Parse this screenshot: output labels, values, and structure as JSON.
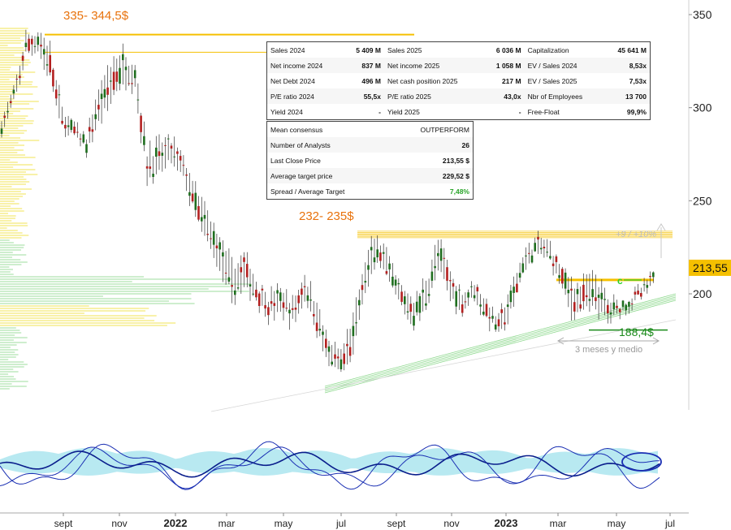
{
  "chart_data": {
    "type": "candlestick",
    "y_axis": {
      "ticks": [
        350,
        300,
        250,
        200
      ],
      "range": [
        155,
        358
      ],
      "side": "right"
    },
    "x_axis": {
      "labels": [
        "sept",
        "nov",
        "2022",
        "mar",
        "may",
        "jul",
        "sept",
        "nov",
        "2023",
        "mar",
        "may",
        "jul"
      ],
      "bold_labels": [
        "2022",
        "2023"
      ]
    },
    "price_series": [
      [
        285,
        296
      ],
      [
        300,
        310
      ],
      [
        325,
        341
      ],
      [
        330,
        343
      ],
      [
        310,
        335
      ],
      [
        285,
        302
      ],
      [
        282,
        292
      ],
      [
        275,
        286
      ],
      [
        290,
        312
      ],
      [
        300,
        328
      ],
      [
        310,
        333
      ],
      [
        310,
        326
      ],
      [
        255,
        282
      ],
      [
        262,
        284
      ],
      [
        268,
        286
      ],
      [
        260,
        275
      ],
      [
        235,
        260
      ],
      [
        225,
        245
      ],
      [
        210,
        234
      ],
      [
        192,
        218
      ],
      [
        200,
        225
      ],
      [
        194,
        210
      ],
      [
        185,
        202
      ],
      [
        188,
        205
      ],
      [
        181,
        198
      ],
      [
        195,
        213
      ],
      [
        175,
        200
      ],
      [
        160,
        175
      ],
      [
        155,
        170
      ],
      [
        165,
        190
      ],
      [
        195,
        223
      ],
      [
        215,
        235
      ],
      [
        200,
        220
      ],
      [
        190,
        205
      ],
      [
        180,
        200
      ],
      [
        190,
        210
      ],
      [
        210,
        232
      ],
      [
        195,
        215
      ],
      [
        188,
        203
      ],
      [
        196,
        210
      ],
      [
        183,
        198
      ],
      [
        175,
        190
      ],
      [
        185,
        205
      ],
      [
        210,
        223
      ],
      [
        218,
        232
      ],
      [
        218,
        230
      ],
      [
        205,
        220
      ],
      [
        185,
        210
      ],
      [
        187,
        210
      ],
      [
        190,
        212
      ],
      [
        183,
        200
      ],
      [
        188,
        197
      ],
      [
        192,
        201
      ],
      [
        198,
        206
      ],
      [
        204,
        214
      ]
    ],
    "horizontal_levels": [
      {
        "label": "335- 344,5$",
        "value": 344.5,
        "color": "#f5c000"
      },
      {
        "value": 335,
        "color": "#f5c000"
      },
      {
        "label": "232- 235$",
        "value": 234.5,
        "color": "#f5c000"
      },
      {
        "value": 232,
        "color": "#f5c000"
      },
      {
        "value": 213.55,
        "color": "#f5c000"
      },
      {
        "label": "188,4$",
        "value": 188.4,
        "color": "#1a8a1a"
      }
    ],
    "last_price_label": "213,55",
    "annotations": {
      "upside": "+9 / +10%",
      "duration": "3 meses y medio",
      "c_marker": "c"
    },
    "colors": {
      "up_candle": "#1f6e1f",
      "down_candle": "#b32020",
      "level_orange": "#f5c000",
      "label_orange": "#e8720c",
      "support_green": "#1a8a1a",
      "trendline": "#8cd88c",
      "volume_profile_yellow": "#f7f0a0",
      "volume_profile_green": "#c9ecc9",
      "osc_fill": "#a6e4ee",
      "osc_line": "#1a2fb3",
      "highlight_ellipse": "#1a2fb3"
    }
  },
  "fundamentals": {
    "rows": [
      [
        "Sales 2024",
        "5 409 M",
        "Sales 2025",
        "6 036 M",
        "Capitalization",
        "45 641 M"
      ],
      [
        "Net income 2024",
        "837 M",
        "Net income 2025",
        "1 058 M",
        "EV / Sales 2024",
        "8,53x"
      ],
      [
        "Net Debt 2024",
        "496 M",
        "Net cash position 2025",
        "217 M",
        "EV / Sales 2025",
        "7,53x"
      ],
      [
        "P/E ratio 2024",
        "55,5x",
        "P/E ratio 2025",
        "43,0x",
        "Nbr of Employees",
        "13 700"
      ],
      [
        "Yield 2024",
        "-",
        "Yield 2025",
        "-",
        "Free-Float",
        "99,9%"
      ]
    ]
  },
  "consensus": {
    "rows": [
      [
        "Mean consensus",
        "OUTPERFORM"
      ],
      [
        "Number of Analysts",
        "26"
      ],
      [
        "Last Close Price",
        "213,55 $"
      ],
      [
        "Average target price",
        "229,52 $"
      ],
      [
        "Spread / Average Target",
        "7,48%"
      ]
    ]
  }
}
